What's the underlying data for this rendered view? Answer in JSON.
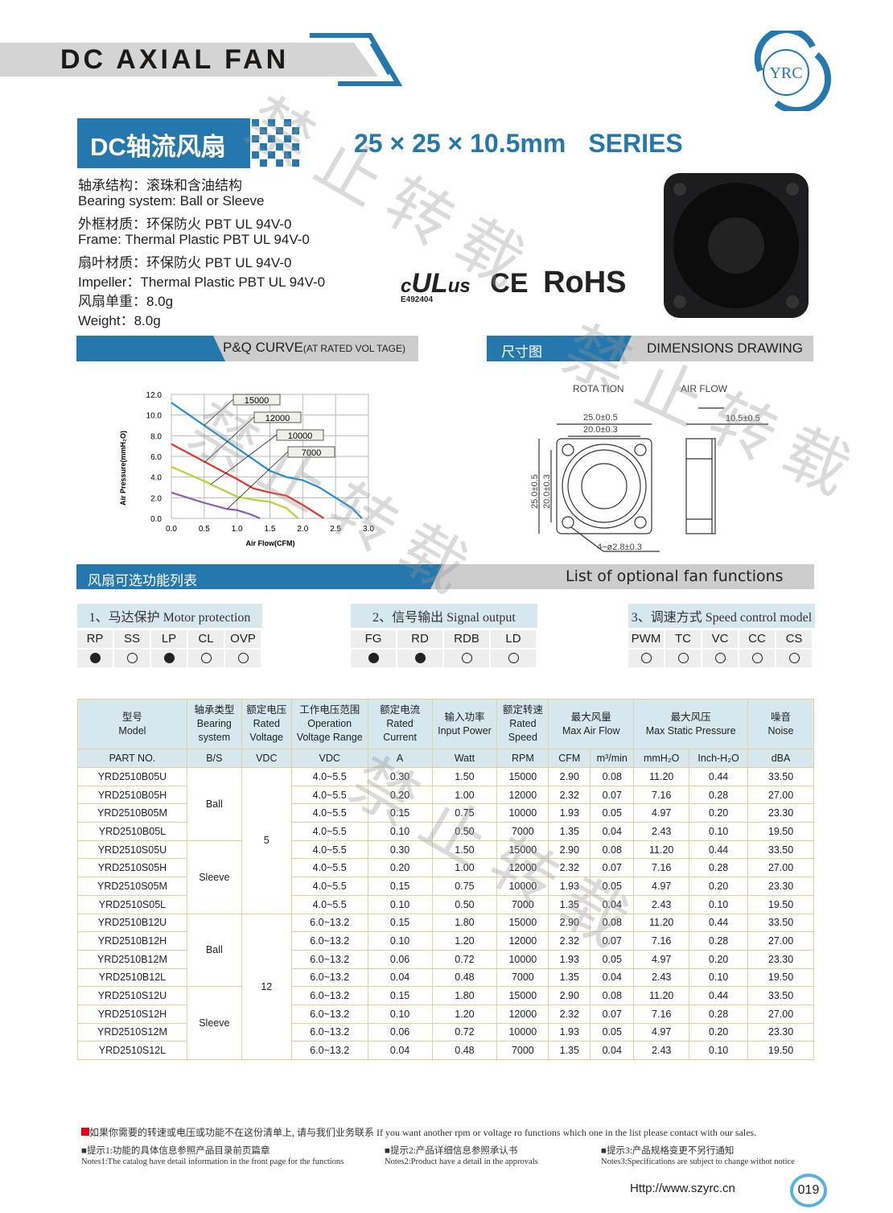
{
  "header": {
    "title": "DC AXIAL FAN",
    "logo_text": "YRC",
    "cn_title": "DC轴流风扇",
    "size": "25 × 25 × 10.5mm",
    "series": "SERIES"
  },
  "specs": [
    "轴承结构：滚珠和含油结构",
    "Bearing system:  Ball or Sleeve",
    "外框材质：环保防火 PBT UL 94V-0",
    "Frame: Thermal Plastic PBT UL 94V-0",
    "扇叶材质：环保防火 PBT UL 94V-0",
    "Impeller：Thermal Plastic PBT UL 94V-0",
    "风扇单重：8.0g",
    "Weight：8.0g"
  ],
  "certs": {
    "ul": "c UL us",
    "ul_no": "E492404",
    "ce": "CE",
    "rohs": "RoHS"
  },
  "watermark": "禁止转载",
  "sections": {
    "pq": "P&Q CURVE",
    "pq_small": "(AT RATED VOL TAGE)",
    "dim_cn": "尺寸图",
    "dim_en": "DIMENSIONS  DRAWING",
    "func_cn": "风扇可选功能列表",
    "func_en": "List of optional fan functions"
  },
  "chart_data": {
    "type": "line",
    "xlabel": "Air Flow(CFM)",
    "ylabel": "Air Pressure(mmH₂O)",
    "xlim": [
      0,
      3
    ],
    "ylim": [
      0,
      12
    ],
    "xticks": [
      "0.0",
      "0.5",
      "1.0",
      "1.5",
      "2.0",
      "2.5",
      "3.0"
    ],
    "yticks": [
      "0.0",
      "2.0",
      "4.0",
      "6.0",
      "8.0",
      "10.0",
      "12.0"
    ],
    "grid": true,
    "series": [
      {
        "name": "15000",
        "color": "#1f8fd6",
        "x": [
          0,
          0.5,
          1.0,
          1.5,
          1.75,
          2.0,
          2.25,
          2.5,
          2.75,
          2.9
        ],
        "y": [
          11.2,
          9.0,
          6.8,
          4.6,
          4.0,
          3.7,
          3.0,
          2.0,
          1.0,
          0
        ]
      },
      {
        "name": "12000",
        "color": "#e8322a",
        "x": [
          0,
          0.5,
          1.0,
          1.25,
          1.5,
          1.75,
          2.0,
          2.2,
          2.32
        ],
        "y": [
          7.2,
          5.5,
          3.8,
          2.9,
          2.5,
          2.2,
          1.3,
          0.5,
          0
        ]
      },
      {
        "name": "10000",
        "color": "#b5d334",
        "x": [
          0,
          0.5,
          1.0,
          1.25,
          1.5,
          1.75,
          1.93
        ],
        "y": [
          5.0,
          3.6,
          2.1,
          1.8,
          1.6,
          1.0,
          0
        ]
      },
      {
        "name": "7000",
        "color": "#8e5bb0",
        "x": [
          0,
          0.5,
          0.85,
          1.0,
          1.2,
          1.35
        ],
        "y": [
          2.5,
          1.5,
          0.9,
          0.8,
          0.4,
          0
        ]
      }
    ]
  },
  "dims": {
    "rotation": "ROTA  TION",
    "airflow": "AIR  FLOW",
    "w1": "25.0±0.5",
    "w2": "20.0±0.3",
    "depth": "10.5±0.5",
    "h1": "25.0±0.5",
    "h2": "20.0±0.3",
    "hole": "4−ø2.8±0.3"
  },
  "functions": [
    {
      "title": "1、马达保护 Motor protection",
      "items": [
        {
          "code": "RP",
          "on": true
        },
        {
          "code": "SS",
          "on": false
        },
        {
          "code": "LP",
          "on": true
        },
        {
          "code": "CL",
          "on": false
        },
        {
          "code": "OVP",
          "on": false
        }
      ]
    },
    {
      "title": "2、信号输出 Signal output",
      "items": [
        {
          "code": "FG",
          "on": true
        },
        {
          "code": "RD",
          "on": true
        },
        {
          "code": "RDB",
          "on": false
        },
        {
          "code": "LD",
          "on": false
        }
      ]
    },
    {
      "title": "3、调速方式 Speed control model",
      "items": [
        {
          "code": "PWM",
          "on": false
        },
        {
          "code": "TC",
          "on": false
        },
        {
          "code": "VC",
          "on": false
        },
        {
          "code": "CC",
          "on": false
        },
        {
          "code": "CS",
          "on": false
        }
      ]
    }
  ],
  "table": {
    "headers": [
      "型号\nModel",
      "轴承类型\nBearing\nsystem",
      "额定电压\nRated\nVoltage",
      "工作电压范围\nOperation\nVoltage Range",
      "额定电流\nRated\nCurrent",
      "输入功率\nInput Power",
      "额定转速\nRated\nSpeed",
      "最大风量\nMax Air Flow",
      "最大风压\nMax Static Pressure",
      "噪音\nNoise"
    ],
    "units": [
      "PART NO.",
      "B/S",
      "VDC",
      "VDC",
      "A",
      "Watt",
      "RPM",
      "CFM",
      "m³/min",
      "mmH₂O",
      "Inch-H₂O",
      "dBA"
    ],
    "rows": [
      [
        "YRD2510B05U",
        "Ball",
        "5",
        "4.0~5.5",
        "0.30",
        "1.50",
        "15000",
        "2.90",
        "0.08",
        "11.20",
        "0.44",
        "33.50"
      ],
      [
        "YRD2510B05H",
        "Ball",
        "5",
        "4.0~5.5",
        "0.20",
        "1.00",
        "12000",
        "2.32",
        "0.07",
        "7.16",
        "0.28",
        "27.00"
      ],
      [
        "YRD2510B05M",
        "Ball",
        "5",
        "4.0~5.5",
        "0.15",
        "0.75",
        "10000",
        "1.93",
        "0.05",
        "4.97",
        "0.20",
        "23.30"
      ],
      [
        "YRD2510B05L",
        "Ball",
        "5",
        "4.0~5.5",
        "0.10",
        "0.50",
        "7000",
        "1.35",
        "0.04",
        "2.43",
        "0.10",
        "19.50"
      ],
      [
        "YRD2510S05U",
        "Sleeve",
        "5",
        "4.0~5.5",
        "0.30",
        "1.50",
        "15000",
        "2.90",
        "0.08",
        "11.20",
        "0.44",
        "33.50"
      ],
      [
        "YRD2510S05H",
        "Sleeve",
        "5",
        "4.0~5.5",
        "0.20",
        "1.00",
        "12000",
        "2.32",
        "0.07",
        "7.16",
        "0.28",
        "27.00"
      ],
      [
        "YRD2510S05M",
        "Sleeve",
        "5",
        "4.0~5.5",
        "0.15",
        "0.75",
        "10000",
        "1.93",
        "0.05",
        "4.97",
        "0.20",
        "23.30"
      ],
      [
        "YRD2510S05L",
        "Sleeve",
        "5",
        "4.0~5.5",
        "0.10",
        "0.50",
        "7000",
        "1.35",
        "0.04",
        "2.43",
        "0.10",
        "19.50"
      ],
      [
        "YRD2510B12U",
        "Ball",
        "12",
        "6.0~13.2",
        "0.15",
        "1.80",
        "15000",
        "2.90",
        "0.08",
        "11.20",
        "0.44",
        "33.50"
      ],
      [
        "YRD2510B12H",
        "Ball",
        "12",
        "6.0~13.2",
        "0.10",
        "1.20",
        "12000",
        "2.32",
        "0.07",
        "7.16",
        "0.28",
        "27.00"
      ],
      [
        "YRD2510B12M",
        "Ball",
        "12",
        "6.0~13.2",
        "0.06",
        "0.72",
        "10000",
        "1.93",
        "0.05",
        "4.97",
        "0.20",
        "23.30"
      ],
      [
        "YRD2510B12L",
        "Ball",
        "12",
        "6.0~13.2",
        "0.04",
        "0.48",
        "7000",
        "1.35",
        "0.04",
        "2.43",
        "0.10",
        "19.50"
      ],
      [
        "YRD2510S12U",
        "Sleeve",
        "12",
        "6.0~13.2",
        "0.15",
        "1.80",
        "15000",
        "2.90",
        "0.08",
        "11.20",
        "0.44",
        "33.50"
      ],
      [
        "YRD2510S12H",
        "Sleeve",
        "12",
        "6.0~13.2",
        "0.10",
        "1.20",
        "12000",
        "2.32",
        "0.07",
        "7.16",
        "0.28",
        "27.00"
      ],
      [
        "YRD2510S12M",
        "Sleeve",
        "12",
        "6.0~13.2",
        "0.06",
        "0.72",
        "10000",
        "1.93",
        "0.05",
        "4.97",
        "0.20",
        "23.30"
      ],
      [
        "YRD2510S12L",
        "Sleeve",
        "12",
        "6.0~13.2",
        "0.04",
        "0.48",
        "7000",
        "1.35",
        "0.04",
        "2.43",
        "0.10",
        "19.50"
      ]
    ]
  },
  "notes": {
    "contact": "如果你需要的转速或电压或功能不在这份清单上, 请与我们业务联系 If you want another rpm or voltage ro functions which one in the list please contact with our sales.",
    "n1_cn": "■提示1:功能的具体信息参照产品目录前页篇章",
    "n1_en": "Notes1:The catalog have detail information in the front page for the functions",
    "n2_cn": "■提示2:产品详细信息参照承认书",
    "n2_en": "Notes2:Product have a detail in the approvals",
    "n3_cn": "■提示3:产品规格变更不另行通知",
    "n3_en": "Notes3:Specifications are subject to change withot notice"
  },
  "footer": {
    "url": "Http://www.szyrc.cn",
    "page": "019"
  },
  "colors": {
    "brand": "#2478ad",
    "contact_marker": "#e60012"
  }
}
